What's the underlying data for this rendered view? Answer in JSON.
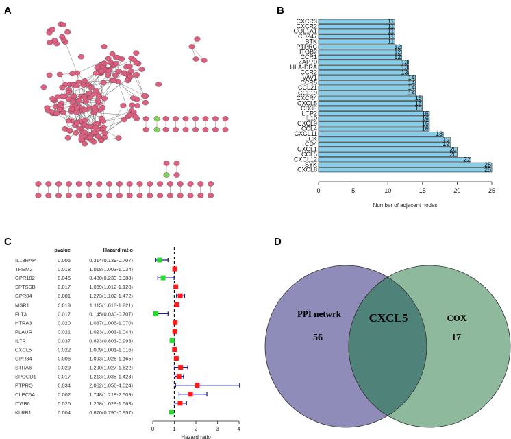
{
  "panels": {
    "a": "A",
    "b": "B",
    "c": "C",
    "d": "D"
  },
  "network": {
    "node_color": "#d9607f",
    "highlight_color": "#7fd35a",
    "node_count_main": 220
  },
  "chart_data": [
    {
      "type": "bar",
      "orientation": "horizontal",
      "categories": [
        "CXCR3",
        "CXCR2",
        "COL1A1",
        "CD247",
        "BTK",
        "PTPRC",
        "ITGB2",
        "CCR1",
        "ZAP70",
        "HLA-DRA",
        "CCR2",
        "VAV1",
        "CCR5",
        "CCL21",
        "CCL19",
        "CXCR4",
        "CXCL5",
        "CD3E",
        "LCP2",
        "IL10",
        "CXCL9",
        "CCL4",
        "CXCL11",
        "LCK",
        "CD4",
        "CXCL1",
        "CCL5",
        "CXCL12",
        "SYK",
        "CXCL8"
      ],
      "values": [
        11,
        11,
        11,
        11,
        11,
        12,
        12,
        12,
        13,
        13,
        13,
        14,
        14,
        14,
        14,
        15,
        15,
        15,
        16,
        16,
        16,
        16,
        18,
        19,
        19,
        20,
        20,
        22,
        25,
        25
      ],
      "xlabel": "Number of adjacent nodes",
      "xlim": [
        0,
        25
      ],
      "xticks": [
        "0",
        "5",
        "10",
        "15",
        "20",
        "25"
      ],
      "bar_color": "#87ceeb"
    },
    {
      "type": "forest",
      "headers": {
        "pvalue": "pvalue",
        "hr": "Hazard ratio"
      },
      "rows": [
        {
          "gene": "IL18RAP",
          "p": "0.005",
          "hr_text": "0.314(0.139-0.707)",
          "hr": 0.314,
          "lo": 0.139,
          "hi": 0.707
        },
        {
          "gene": "TREM2",
          "p": "0.018",
          "hr_text": "1.018(1.003-1.034)",
          "hr": 1.018,
          "lo": 1.003,
          "hi": 1.034
        },
        {
          "gene": "GPR182",
          "p": "0.046",
          "hr_text": "0.480(0.233-0.988)",
          "hr": 0.48,
          "lo": 0.233,
          "hi": 0.988
        },
        {
          "gene": "SPTSSB",
          "p": "0.017",
          "hr_text": "1.069(1.012-1.128)",
          "hr": 1.069,
          "lo": 1.012,
          "hi": 1.128
        },
        {
          "gene": "GPR84",
          "p": "0.001",
          "hr_text": "1.273(1.102-1.472)",
          "hr": 1.273,
          "lo": 1.102,
          "hi": 1.472
        },
        {
          "gene": "MSR1",
          "p": "0.019",
          "hr_text": "1.115(1.018-1.221)",
          "hr": 1.115,
          "lo": 1.018,
          "hi": 1.221
        },
        {
          "gene": "FLT3",
          "p": "0.017",
          "hr_text": "0.145(0.030-0.707)",
          "hr": 0.145,
          "lo": 0.03,
          "hi": 0.707
        },
        {
          "gene": "HTRA3",
          "p": "0.020",
          "hr_text": "1.037(1.006-1.070)",
          "hr": 1.037,
          "lo": 1.006,
          "hi": 1.07
        },
        {
          "gene": "PLAUR",
          "p": "0.021",
          "hr_text": "1.023(1.003-1.044)",
          "hr": 1.023,
          "lo": 1.003,
          "hi": 1.044
        },
        {
          "gene": "IL7R",
          "p": "0.037",
          "hr_text": "0.893(0.803-0.993)",
          "hr": 0.893,
          "lo": 0.803,
          "hi": 0.993
        },
        {
          "gene": "CXCL5",
          "p": "0.022",
          "hr_text": "1.009(1.001-1.016)",
          "hr": 1.009,
          "lo": 1.001,
          "hi": 1.016
        },
        {
          "gene": "GPR34",
          "p": "0.006",
          "hr_text": "1.093(1.026-1.165)",
          "hr": 1.093,
          "lo": 1.026,
          "hi": 1.165
        },
        {
          "gene": "STRA6",
          "p": "0.029",
          "hr_text": "1.290(1.027-1.622)",
          "hr": 1.29,
          "lo": 1.027,
          "hi": 1.622
        },
        {
          "gene": "SPOCD1",
          "p": "0.017",
          "hr_text": "1.213(1.035-1.423)",
          "hr": 1.213,
          "lo": 1.035,
          "hi": 1.423
        },
        {
          "gene": "PTPRO",
          "p": "0.034",
          "hr_text": "2.062(1.056-4.024)",
          "hr": 2.062,
          "lo": 1.056,
          "hi": 4.024
        },
        {
          "gene": "CLEC5A",
          "p": "0.002",
          "hr_text": "1.748(1.218-2.509)",
          "hr": 1.748,
          "lo": 1.218,
          "hi": 2.509
        },
        {
          "gene": "ITGB6",
          "p": "0.026",
          "hr_text": "1.268(1.028-1.563)",
          "hr": 1.268,
          "lo": 1.028,
          "hi": 1.563
        },
        {
          "gene": "KLRB1",
          "p": "0.004",
          "hr_text": "0.870(0.790-0.957)",
          "hr": 0.87,
          "lo": 0.79,
          "hi": 0.957
        }
      ],
      "xlabel": "Hazard ratio",
      "xlim": [
        0,
        4
      ],
      "xticks": [
        "0",
        "1",
        "2",
        "3",
        "4"
      ],
      "colors": {
        "risk": "#ff1a1a",
        "protective": "#22e02a",
        "ci": "#1a1aa0"
      }
    },
    {
      "type": "venn",
      "sets": [
        {
          "name": "PPI netwrk",
          "only": "56",
          "color": "#8f8cb9"
        },
        {
          "name": "COX",
          "only": "17",
          "color": "#8fb99c"
        }
      ],
      "intersection": "CXCL5",
      "intersection_color": "#4f8278"
    }
  ]
}
